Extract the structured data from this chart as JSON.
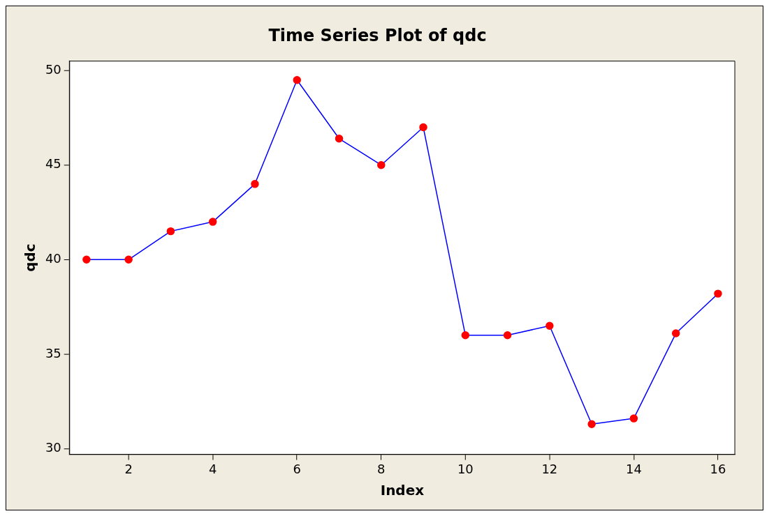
{
  "chart_data": {
    "type": "line",
    "title": "Time Series Plot of qdc",
    "xlabel": "Index",
    "ylabel": "qdc",
    "x": [
      1,
      2,
      3,
      4,
      5,
      6,
      7,
      8,
      9,
      10,
      11,
      12,
      13,
      14,
      15,
      16
    ],
    "series": [
      {
        "color": "#0000ff",
        "colors": [
          "#ff0000",
          "#ff0000",
          "#ff0000",
          "#ff0000",
          "#ff0000",
          "#ff0000",
          "#ff0000",
          "#ff0000",
          "#ff0000",
          "#ff0000",
          "#ff0000",
          "#ff0000",
          "#ff0000",
          "#ff0000",
          "#ff0000",
          "#ff0000"
        ],
        "values": [
          40.0,
          40.0,
          41.5,
          42.0,
          44.0,
          49.5,
          46.4,
          45.0,
          47.0,
          36.0,
          36.0,
          36.5,
          31.3,
          31.6,
          36.1,
          38.2
        ]
      }
    ],
    "xlim": [
      0.6,
      16.4
    ],
    "xticks": [
      2,
      4,
      6,
      8,
      10,
      12,
      14,
      16
    ],
    "ylim": [
      29.7,
      50.5
    ],
    "yticks": [
      30,
      35,
      40,
      45,
      50
    ],
    "grid": false,
    "legend": false,
    "marker": "circle",
    "line_style": "solid"
  }
}
